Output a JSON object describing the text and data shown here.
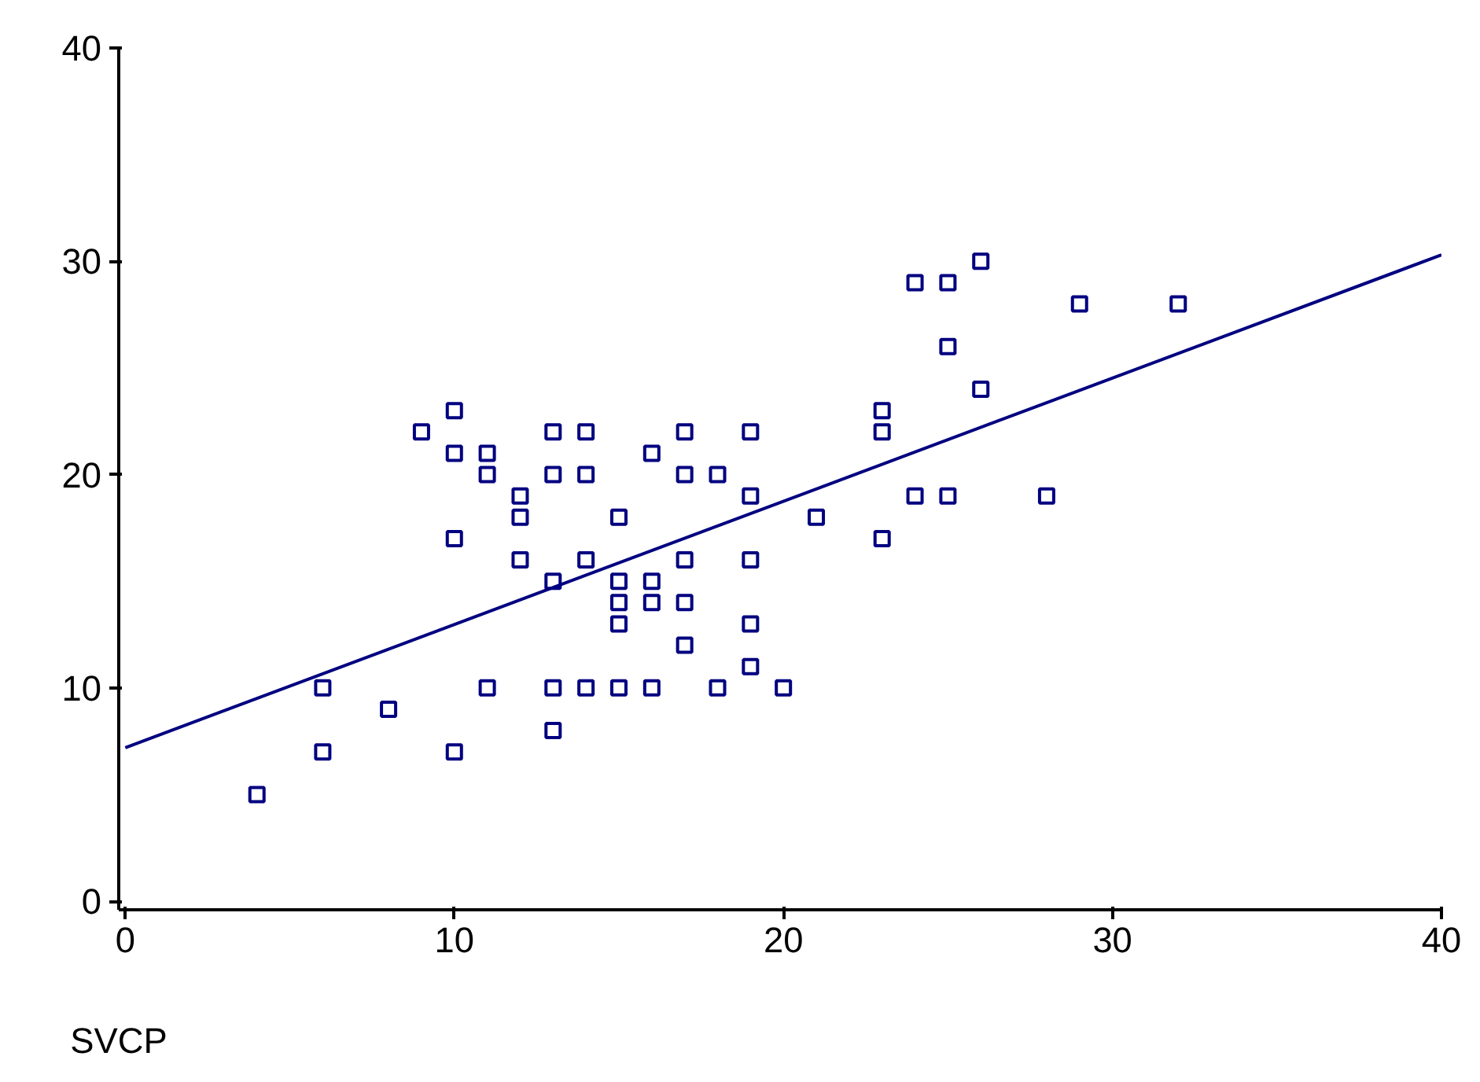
{
  "chart_data": {
    "type": "scatter",
    "xlabel": "SVCP",
    "xlim": [
      -0.2,
      40
    ],
    "ylim": [
      -0.4,
      40
    ],
    "xticks": [
      0,
      10,
      20,
      30,
      40
    ],
    "yticks": [
      0,
      10,
      20,
      30,
      40
    ],
    "grid": false,
    "series": [
      {
        "marker": "square",
        "color": "#000080",
        "x": [
          4,
          6,
          6,
          8,
          9,
          10,
          10,
          10,
          10,
          11,
          11,
          11,
          12,
          12,
          12,
          13,
          13,
          13,
          13,
          13,
          14,
          14,
          14,
          14,
          15,
          15,
          15,
          15,
          15,
          16,
          16,
          16,
          16,
          17,
          17,
          17,
          17,
          17,
          18,
          18,
          19,
          19,
          19,
          19,
          19,
          20,
          21,
          23,
          23,
          23,
          24,
          24,
          25,
          25,
          25,
          26,
          26,
          28,
          29,
          32
        ],
        "values": [
          5,
          10,
          7,
          9,
          22,
          23,
          21,
          17,
          7,
          21,
          20,
          10,
          19,
          18,
          16,
          22,
          20,
          15,
          10,
          8,
          22,
          20,
          16,
          10,
          18,
          15,
          14,
          13,
          10,
          21,
          15,
          14,
          10,
          22,
          20,
          16,
          14,
          12,
          20,
          10,
          22,
          19,
          16,
          13,
          11,
          10,
          18,
          23,
          22,
          17,
          29,
          19,
          29,
          26,
          19,
          30,
          24,
          19,
          28,
          28
        ]
      },
      {
        "type": "line",
        "marker": "none",
        "color": "#000080",
        "x": [
          0,
          40
        ],
        "values": [
          7.2,
          30.3
        ]
      }
    ]
  }
}
